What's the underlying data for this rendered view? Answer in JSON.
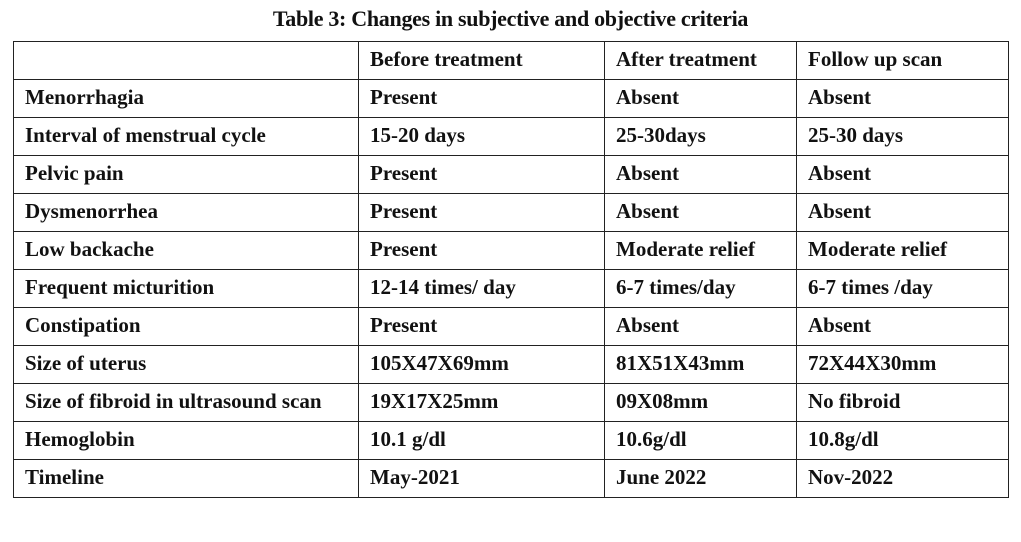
{
  "title": "Table 3: Changes in subjective and objective criteria",
  "table": {
    "header": [
      "Before treatment",
      "After treatment",
      "Follow up scan"
    ],
    "rows": [
      [
        "Menorrhagia",
        "Present",
        "Absent",
        "Absent"
      ],
      [
        "Interval of menstrual cycle",
        "15-20 days",
        "25-30days",
        "25-30 days"
      ],
      [
        "Pelvic pain",
        "Present",
        "Absent",
        "Absent"
      ],
      [
        "Dysmenorrhea",
        "Present",
        "Absent",
        "Absent"
      ],
      [
        "Low backache",
        "Present",
        "Moderate relief",
        "Moderate relief"
      ],
      [
        "Frequent micturition",
        "12-14 times/ day",
        "6-7 times/day",
        "6-7 times /day"
      ],
      [
        "Constipation",
        "Present",
        "Absent",
        "Absent"
      ],
      [
        "Size of uterus",
        "105X47X69mm",
        "81X51X43mm",
        "72X44X30mm"
      ],
      [
        "Size of fibroid in ultrasound scan",
        "19X17X25mm",
        "09X08mm",
        "No fibroid"
      ],
      [
        "Hemoglobin",
        "10.1 g/dl",
        "10.6g/dl",
        "10.8g/dl"
      ],
      [
        "Timeline",
        "May-2021",
        "June 2022",
        "Nov-2022"
      ]
    ]
  }
}
